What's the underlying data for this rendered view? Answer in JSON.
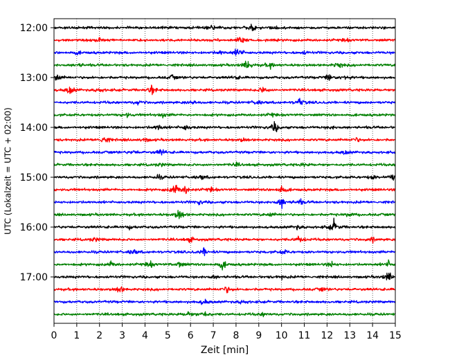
{
  "chart_data": {
    "type": "line",
    "title": "",
    "xlabel": "Zeit  [min]",
    "ylabel": "UTC (Lokalzeit = UTC + 02:00)",
    "xlim": [
      0,
      15
    ],
    "x_ticks": [
      "0",
      "1",
      "2",
      "3",
      "4",
      "5",
      "6",
      "7",
      "8",
      "9",
      "10",
      "11",
      "12",
      "13",
      "14",
      "15"
    ],
    "y_ticks": [
      {
        "label": "12:00",
        "trace": 0
      },
      {
        "label": "13:00",
        "trace": 4
      },
      {
        "label": "14:00",
        "trace": 8
      },
      {
        "label": "15:00",
        "trace": 12
      },
      {
        "label": "16:00",
        "trace": 16
      },
      {
        "label": "17:00",
        "trace": 20
      }
    ],
    "grid": "vertical-dotted",
    "trace_interval_minutes": 15,
    "start_time": "12:00",
    "colors": [
      "#000000",
      "#ff0000",
      "#0000ff",
      "#008000"
    ],
    "traces": [
      {
        "start": "12:00",
        "events": [
          [
            7.0,
            0.5
          ],
          [
            8.7,
            0.6
          ],
          [
            9.7,
            0.3
          ]
        ]
      },
      {
        "start": "12:15",
        "events": [
          [
            2.0,
            0.4
          ],
          [
            8.2,
            0.9
          ],
          [
            12.8,
            0.3
          ]
        ]
      },
      {
        "start": "12:30",
        "events": [
          [
            1.0,
            0.3
          ],
          [
            7.3,
            0.4
          ],
          [
            8.1,
            1.0
          ],
          [
            11.0,
            0.3
          ]
        ]
      },
      {
        "start": "12:45",
        "events": [
          [
            1.1,
            0.3
          ],
          [
            8.5,
            1.1
          ],
          [
            9.5,
            0.5
          ],
          [
            12.5,
            0.6
          ]
        ]
      },
      {
        "start": "13:00",
        "events": [
          [
            0.1,
            1.1
          ],
          [
            5.2,
            0.4
          ],
          [
            8.0,
            0.3
          ],
          [
            12.1,
            0.7
          ],
          [
            12.8,
            0.4
          ]
        ]
      },
      {
        "start": "13:15",
        "events": [
          [
            0.7,
            0.9
          ],
          [
            2.0,
            0.4
          ],
          [
            4.3,
            0.8
          ],
          [
            9.2,
            0.8
          ]
        ]
      },
      {
        "start": "13:30",
        "events": [
          [
            3.7,
            0.4
          ],
          [
            6.1,
            0.4
          ],
          [
            8.9,
            0.4
          ],
          [
            10.8,
            0.8
          ]
        ]
      },
      {
        "start": "13:45",
        "events": [
          [
            3.2,
            0.4
          ],
          [
            4.8,
            0.4
          ],
          [
            9.6,
            0.3
          ]
        ]
      },
      {
        "start": "14:00",
        "events": [
          [
            4.6,
            0.6
          ],
          [
            5.8,
            0.6
          ],
          [
            9.7,
            1.1
          ],
          [
            12.2,
            0.3
          ]
        ]
      },
      {
        "start": "14:15",
        "events": [
          [
            2.2,
            1.0
          ],
          [
            4.0,
            0.4
          ],
          [
            8.3,
            0.3
          ],
          [
            13.3,
            0.4
          ]
        ]
      },
      {
        "start": "14:30",
        "events": [
          [
            3.5,
            0.3
          ],
          [
            4.7,
            0.6
          ],
          [
            12.8,
            0.4
          ]
        ]
      },
      {
        "start": "14:45",
        "events": [
          [
            4.7,
            0.3
          ],
          [
            8.0,
            0.3
          ],
          [
            11.0,
            0.3
          ]
        ]
      },
      {
        "start": "15:00",
        "events": [
          [
            4.6,
            0.4
          ],
          [
            6.5,
            0.4
          ],
          [
            14.0,
            0.4
          ],
          [
            14.9,
            0.6
          ]
        ]
      },
      {
        "start": "15:15",
        "events": [
          [
            5.3,
            1.3
          ],
          [
            5.8,
            0.8
          ],
          [
            10.0,
            0.9
          ],
          [
            6.9,
            0.4
          ]
        ]
      },
      {
        "start": "15:30",
        "events": [
          [
            6.4,
            0.4
          ],
          [
            10.0,
            1.1
          ],
          [
            10.8,
            0.5
          ]
        ]
      },
      {
        "start": "15:45",
        "events": [
          [
            5.5,
            1.1
          ],
          [
            9.5,
            0.4
          ],
          [
            13.0,
            0.4
          ]
        ]
      },
      {
        "start": "16:00",
        "events": [
          [
            3.3,
            0.3
          ],
          [
            10.7,
            0.4
          ],
          [
            12.3,
            1.2
          ]
        ]
      },
      {
        "start": "16:15",
        "events": [
          [
            1.8,
            0.4
          ],
          [
            6.0,
            0.5
          ],
          [
            10.8,
            0.8
          ],
          [
            14.0,
            0.4
          ]
        ]
      },
      {
        "start": "16:30",
        "events": [
          [
            3.5,
            0.5
          ],
          [
            6.6,
            0.7
          ],
          [
            10.1,
            0.4
          ]
        ]
      },
      {
        "start": "16:45",
        "events": [
          [
            2.5,
            0.5
          ],
          [
            4.2,
            0.7
          ],
          [
            5.5,
            0.7
          ],
          [
            7.4,
            0.9
          ],
          [
            12.2,
            0.5
          ],
          [
            14.7,
            0.6
          ]
        ]
      },
      {
        "start": "17:00",
        "events": [
          [
            7.0,
            0.3
          ],
          [
            10.0,
            0.3
          ],
          [
            14.7,
            1.1
          ]
        ]
      },
      {
        "start": "17:15",
        "events": [
          [
            2.9,
            0.7
          ],
          [
            7.6,
            0.7
          ],
          [
            11.8,
            0.3
          ]
        ]
      },
      {
        "start": "17:30",
        "events": [
          [
            6.6,
            0.6
          ],
          [
            8.3,
            0.4
          ]
        ]
      },
      {
        "start": "17:45",
        "events": [
          [
            5.9,
            0.5
          ],
          [
            6.6,
            0.8
          ],
          [
            9.2,
            0.3
          ]
        ]
      }
    ]
  }
}
